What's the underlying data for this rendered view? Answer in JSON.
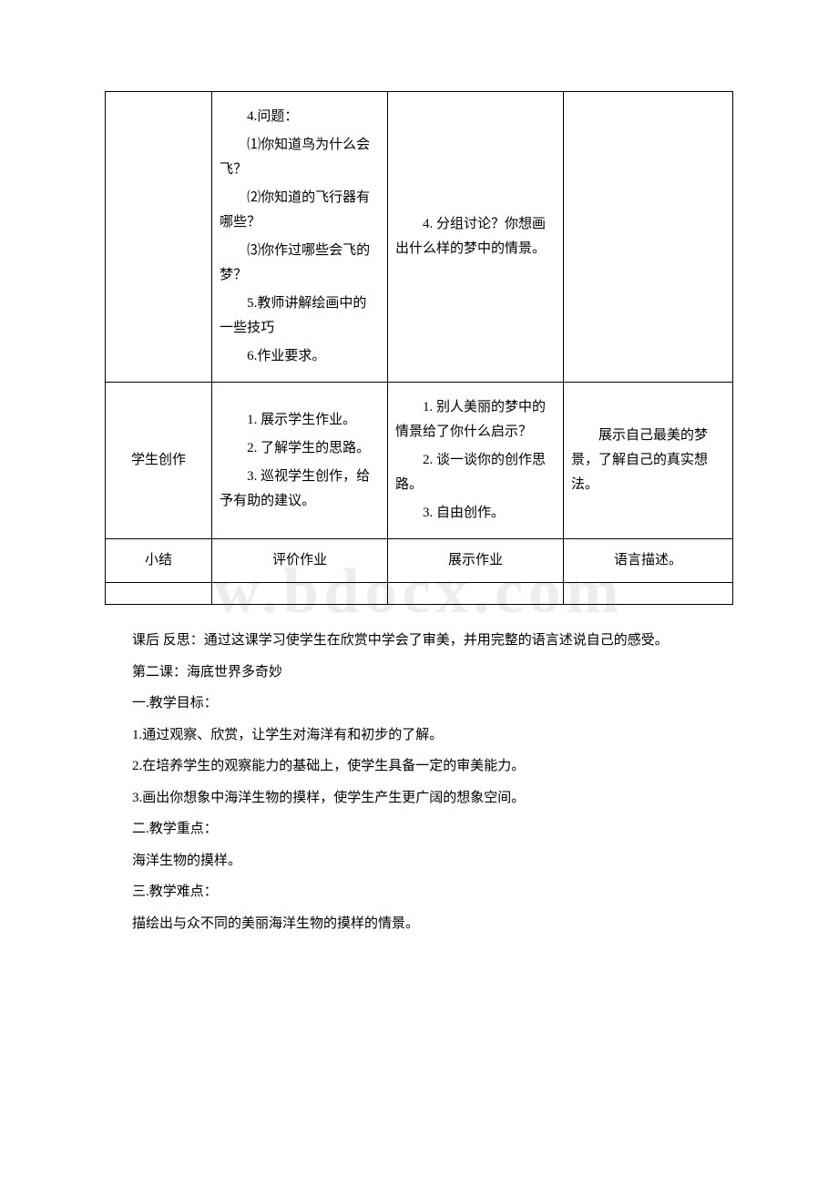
{
  "watermark": "w.bdocx.com",
  "table": {
    "rows": [
      {
        "col1": "",
        "col2": [
          "4.问题：",
          "⑴你知道鸟为什么会飞？",
          "⑵你知道的飞行器有哪些？",
          "⑶你作过哪些会飞的梦？",
          "5.教师讲解绘画中的一些技巧",
          "6.作业要求。"
        ],
        "col3": [
          "4. 分组讨论？你想画出什么样的梦中的情景。"
        ],
        "col4": ""
      },
      {
        "col1": "学生创作",
        "col2": [
          "1. 展示学生作业。",
          "2. 了解学生的思路。",
          "3. 巡视学生创作，给予有助的建议。"
        ],
        "col3": [
          "1. 别人美丽的梦中的情景给了你什么启示？",
          "2. 谈一谈你的创作思路。",
          "3. 自由创作。"
        ],
        "col4": "展示自己最美的梦景，了解自己的真实想法。"
      },
      {
        "col1": "小结",
        "col2_single": "评价作业",
        "col3_single": "展示作业",
        "col4": "语言描述。"
      }
    ]
  },
  "paragraphs": [
    "课后 反思：通过这课学习使学生在欣赏中学会了审美，并用完整的语言述说自己的感受。",
    "第二课：海底世界多奇妙",
    "一.教学目标：",
    "1.通过观察、欣赏，让学生对海洋有和初步的了解。",
    "2.在培养学生的观察能力的基础上，使学生具备一定的审美能力。",
    "3.画出你想象中海洋生物的摸样，使学生产生更广阔的想象空间。",
    "二.教学重点：",
    "海洋生物的摸样。",
    "三.教学难点：",
    "描绘出与众不同的美丽海洋生物的摸样的情景。"
  ]
}
